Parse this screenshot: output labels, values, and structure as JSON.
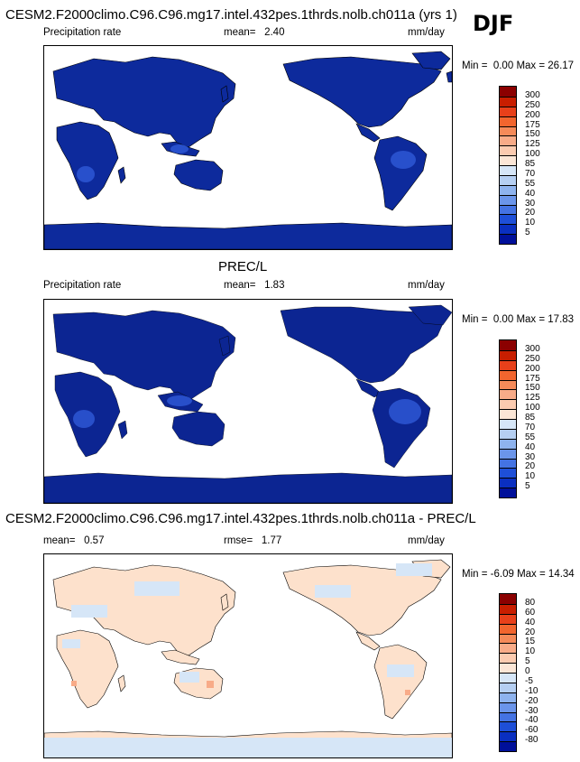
{
  "header": {
    "case_title": "CESM2.F2000climo.C96.C96.mg17.intel.432pes.1thrds.nolb.ch011a (yrs 1)",
    "season": "DJF"
  },
  "panels": [
    {
      "id": "model",
      "left_label": "Precipitation rate",
      "stat_label": "mean=",
      "stat_value": "2.40",
      "units": "mm/day",
      "min_label": "Min =",
      "min_value": "0.00",
      "max_label": "Max =",
      "max_value": "26.17",
      "colorbar_labels": [
        "300",
        "250",
        "200",
        "175",
        "150",
        "125",
        "100",
        "85",
        "70",
        "55",
        "40",
        "30",
        "20",
        "10",
        "5"
      ],
      "colorbar_colors": [
        "#8b0000",
        "#c81e00",
        "#e8401a",
        "#f2652e",
        "#f58a59",
        "#f8ab88",
        "#fbcbb0",
        "#fbe6d6",
        "#d6e6f7",
        "#b5cff2",
        "#8eb3ee",
        "#6b95ea",
        "#4473e3",
        "#1e4fd8",
        "#0a2fc0",
        "#00109a"
      ]
    },
    {
      "id": "obs",
      "title": "PREC/L",
      "left_label": "Precipitation rate",
      "stat_label": "mean=",
      "stat_value": "1.83",
      "units": "mm/day",
      "min_label": "Min =",
      "min_value": "0.00",
      "max_label": "Max =",
      "max_value": "17.83",
      "colorbar_labels": [
        "300",
        "250",
        "200",
        "175",
        "150",
        "125",
        "100",
        "85",
        "70",
        "55",
        "40",
        "30",
        "20",
        "10",
        "5"
      ],
      "colorbar_colors": [
        "#8b0000",
        "#c81e00",
        "#e8401a",
        "#f2652e",
        "#f58a59",
        "#f8ab88",
        "#fbcbb0",
        "#fbe6d6",
        "#d6e6f7",
        "#b5cff2",
        "#8eb3ee",
        "#6b95ea",
        "#4473e3",
        "#1e4fd8",
        "#0a2fc0",
        "#00109a"
      ]
    },
    {
      "id": "diff",
      "title": "CESM2.F2000climo.C96.C96.mg17.intel.432pes.1thrds.nolb.ch011a - PREC/L",
      "left_label": "mean=",
      "left_value": "0.57",
      "stat_label": "rmse=",
      "stat_value": "1.77",
      "units": "mm/day",
      "min_label": "Min =",
      "min_value": "-6.09",
      "max_label": "Max =",
      "max_value": "14.34",
      "colorbar_labels": [
        "80",
        "60",
        "40",
        "20",
        "15",
        "10",
        "5",
        "0",
        "-5",
        "-10",
        "-20",
        "-30",
        "-40",
        "-60",
        "-80"
      ],
      "colorbar_colors": [
        "#8b0000",
        "#c81e00",
        "#e8401a",
        "#f2652e",
        "#f58a59",
        "#f8ab88",
        "#fbcbb0",
        "#fbe6d6",
        "#d6e6f7",
        "#b5cff2",
        "#8eb3ee",
        "#6b95ea",
        "#4473e3",
        "#1e4fd8",
        "#0a2fc0",
        "#00109a"
      ]
    }
  ],
  "colors": {
    "land_model": "#0d2a9c",
    "land_obs": "#0c2592",
    "land_light": "#2f5ad8",
    "diff_pos": "#fde1cc",
    "diff_neg": "#d6e6f7",
    "ocean": "#ffffff"
  }
}
